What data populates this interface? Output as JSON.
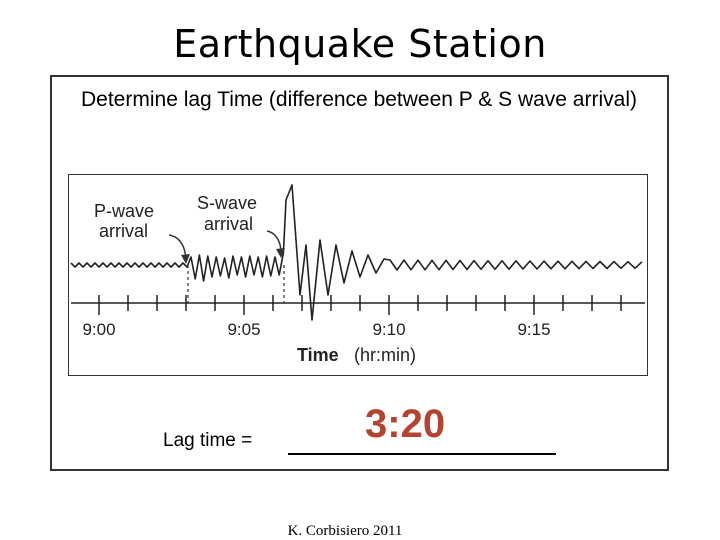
{
  "slide": {
    "title": "Earthquake Station",
    "instruction": "Determine lag Time (difference between P & S wave arrival)",
    "lag_label": "Lag time =",
    "lag_answer": "3:20",
    "credit": "K. Corbisiero 2011"
  },
  "seismogram": {
    "p_label_line1": "P-wave",
    "p_label_line2": "arrival",
    "s_label_line1": "S-wave",
    "s_label_line2": "arrival",
    "axis_title": "Time",
    "axis_unit": "(hr:min)",
    "tick_labels": [
      "9:00",
      "9:05",
      "9:10",
      "9:15"
    ],
    "p_wave_arrival": "9:04",
    "s_wave_arrival": "9:07:20"
  }
}
